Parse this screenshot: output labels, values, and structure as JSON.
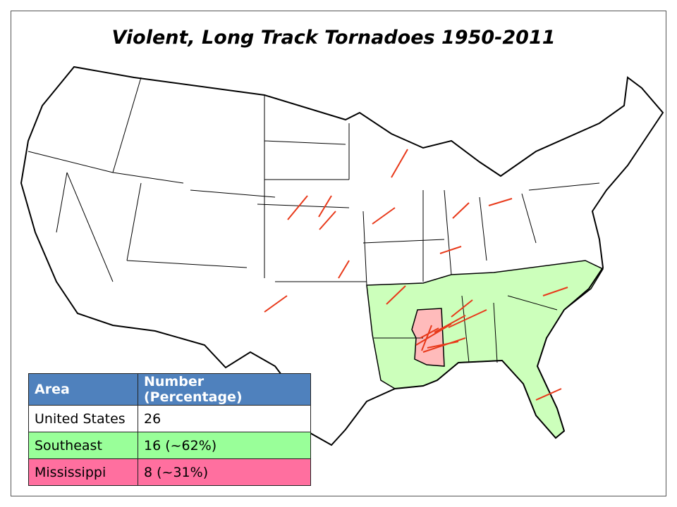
{
  "title": "Violent, Long Track Tornadoes 1950-2011",
  "table": {
    "header": [
      "Area",
      "Number (Percentage)"
    ],
    "rows": [
      [
        "United States",
        "26"
      ],
      [
        "Southeast",
        "16 (~62%)"
      ],
      [
        "Mississippi",
        "8 (~31%)"
      ]
    ]
  }
}
